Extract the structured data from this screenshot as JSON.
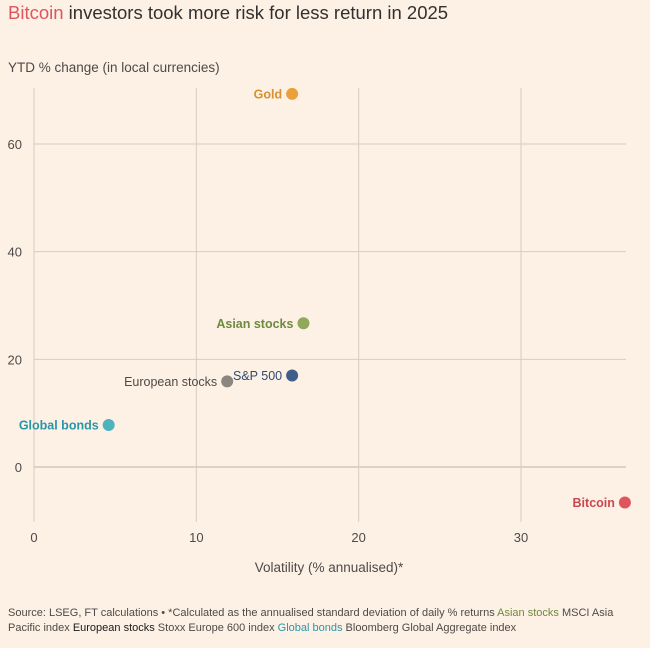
{
  "title": {
    "highlight": "Bitcoin",
    "rest": " investors took more risk for less return in 2025"
  },
  "colors": {
    "background": "#fdf1e6",
    "grid": "#d6ccc2",
    "bitcoin": "#e0545e",
    "gold": "#eba13a",
    "asian_stocks": "#8fa85a",
    "sp500": "#3f5f8a",
    "european_stocks": "#8c8680",
    "global_bonds": "#4fb3bd"
  },
  "chart_data": {
    "type": "scatter",
    "title": "Bitcoin investors took more risk for less return in 2025",
    "xlabel": "Volatility (% annualised)*",
    "ylabel": "YTD % change (in local currencies)",
    "xlim": [
      0,
      37
    ],
    "ylim": [
      -10,
      70
    ],
    "xticks": [
      0,
      10,
      20,
      30
    ],
    "yticks": [
      0,
      20,
      40,
      60
    ],
    "grid": true,
    "points": [
      {
        "name": "Gold",
        "x": 15.9,
        "y": 69.3,
        "color": "#eba13a",
        "label_side": "left",
        "label_color": "#d8912e",
        "bold": true
      },
      {
        "name": "Asian stocks",
        "x": 16.6,
        "y": 26.7,
        "color": "#8fa85a",
        "label_side": "left",
        "label_color": "#6f8a3d",
        "bold": true
      },
      {
        "name": "S&P 500",
        "x": 15.9,
        "y": 17.0,
        "color": "#3f5f8a",
        "label_side": "left",
        "label_color": "#2d4a70",
        "bold": false
      },
      {
        "name": "European stocks",
        "x": 11.9,
        "y": 15.9,
        "color": "#8c8680",
        "label_side": "left",
        "label_color": "#4e4a47",
        "bold": false
      },
      {
        "name": "Global bonds",
        "x": 4.6,
        "y": 7.8,
        "color": "#4fb3bd",
        "label_side": "left",
        "label_color": "#2996a8",
        "bold": true
      },
      {
        "name": "Bitcoin",
        "x": 36.4,
        "y": -6.6,
        "color": "#e0545e",
        "label_side": "left",
        "label_color": "#c94850",
        "bold": true
      }
    ]
  },
  "source": {
    "text1": "Source: LSEG, FT calculations • *Calculated as the annualised standard deviation of daily % returns ",
    "asian_label": "Asian stocks",
    "text2": " MSCI Asia Pacific index ",
    "euro_label": "European stocks",
    "text3": " Stoxx Europe 600 index ",
    "bonds_label": "Global bonds",
    "text4": " Bloomberg Global Aggregate index"
  }
}
